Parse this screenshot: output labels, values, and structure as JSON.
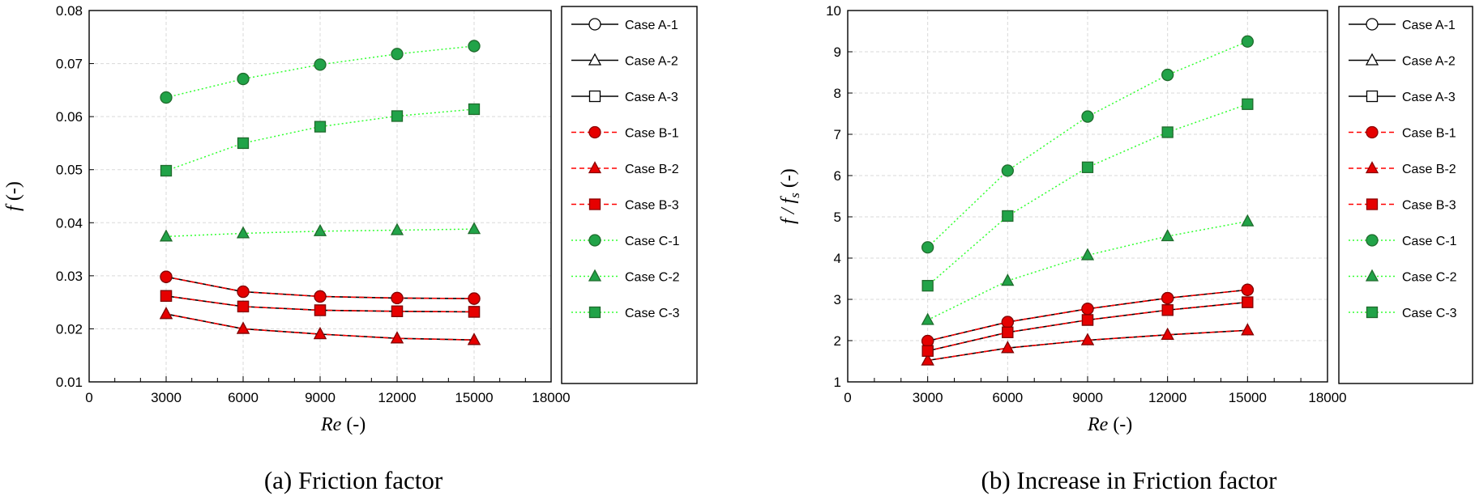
{
  "chart_data": [
    {
      "type": "line",
      "title": "",
      "caption": "(a) Friction factor",
      "xlabel": "(-)",
      "xlabel_italic": "Re",
      "ylabel": "(-)",
      "ylabel_italic": "f",
      "xlim": [
        0,
        18000
      ],
      "ylim": [
        0.01,
        0.08
      ],
      "xticks": [
        0,
        3000,
        6000,
        9000,
        12000,
        15000,
        18000
      ],
      "yticks": [
        0.01,
        0.02,
        0.03,
        0.04,
        0.05,
        0.06,
        0.07,
        0.08
      ],
      "ytick_labels": [
        "0.01",
        "0.02",
        "0.03",
        "0.04",
        "0.05",
        "0.06",
        "0.07",
        "0.08"
      ],
      "grid": true,
      "legend": "right",
      "x": [
        3000,
        6000,
        9000,
        12000,
        15000
      ],
      "series": [
        {
          "name": "Case A-1",
          "values": [
            0.0298,
            0.027,
            0.0261,
            0.0258,
            0.0257
          ]
        },
        {
          "name": "Case A-2",
          "values": [
            0.0228,
            0.02,
            0.019,
            0.0182,
            0.0179
          ]
        },
        {
          "name": "Case A-3",
          "values": [
            0.0262,
            0.0242,
            0.0235,
            0.0233,
            0.0232
          ]
        },
        {
          "name": "Case B-1",
          "values": [
            0.0298,
            0.027,
            0.0261,
            0.0258,
            0.0257
          ]
        },
        {
          "name": "Case B-2",
          "values": [
            0.0228,
            0.02,
            0.019,
            0.0182,
            0.0179
          ]
        },
        {
          "name": "Case B-3",
          "values": [
            0.0262,
            0.0242,
            0.0235,
            0.0233,
            0.0232
          ]
        },
        {
          "name": "Case C-1",
          "values": [
            0.0636,
            0.0671,
            0.0698,
            0.0718,
            0.0733
          ]
        },
        {
          "name": "Case C-2",
          "values": [
            0.0374,
            0.038,
            0.0384,
            0.0386,
            0.0388
          ]
        },
        {
          "name": "Case C-3",
          "values": [
            0.0498,
            0.055,
            0.0581,
            0.0601,
            0.0614
          ]
        }
      ]
    },
    {
      "type": "line",
      "title": "",
      "caption": "(b) Increase in Friction factor",
      "xlabel": "(-)",
      "xlabel_italic": "Re",
      "ylabel": "(-)",
      "ylabel_italic": "f / f",
      "ylabel_sub": "s",
      "xlim": [
        0,
        18000
      ],
      "ylim": [
        1,
        10
      ],
      "xticks": [
        0,
        3000,
        6000,
        9000,
        12000,
        15000,
        18000
      ],
      "yticks": [
        1,
        2,
        3,
        4,
        5,
        6,
        7,
        8,
        9,
        10
      ],
      "ytick_labels": [
        "1",
        "2",
        "3",
        "4",
        "5",
        "6",
        "7",
        "8",
        "9",
        "10"
      ],
      "grid": true,
      "legend": "right",
      "x": [
        3000,
        6000,
        9000,
        12000,
        15000
      ],
      "series": [
        {
          "name": "Case A-1",
          "values": [
            1.99,
            2.45,
            2.77,
            3.03,
            3.23
          ]
        },
        {
          "name": "Case A-2",
          "values": [
            1.52,
            1.82,
            2.01,
            2.14,
            2.25
          ]
        },
        {
          "name": "Case A-3",
          "values": [
            1.75,
            2.2,
            2.5,
            2.74,
            2.93
          ]
        },
        {
          "name": "Case B-1",
          "values": [
            1.99,
            2.45,
            2.77,
            3.03,
            3.23
          ]
        },
        {
          "name": "Case B-2",
          "values": [
            1.52,
            1.82,
            2.01,
            2.14,
            2.25
          ]
        },
        {
          "name": "Case B-3",
          "values": [
            1.75,
            2.2,
            2.5,
            2.74,
            2.93
          ]
        },
        {
          "name": "Case C-1",
          "values": [
            4.26,
            6.12,
            7.43,
            8.44,
            9.25
          ]
        },
        {
          "name": "Case C-2",
          "values": [
            2.5,
            3.45,
            4.07,
            4.53,
            4.89
          ]
        },
        {
          "name": "Case C-3",
          "values": [
            3.33,
            5.02,
            6.2,
            7.05,
            7.73
          ]
        }
      ]
    }
  ],
  "styles": {
    "A": {
      "color": "#000000",
      "fill": "#ffffff",
      "dash": "none"
    },
    "B": {
      "color": "#ff0000",
      "fill": "#ff0000",
      "dash": "6,4"
    },
    "C": {
      "color": "#33ff33",
      "fill": "#21a348",
      "dash": "2,3"
    }
  },
  "markers": [
    "circle",
    "triangle",
    "square"
  ]
}
